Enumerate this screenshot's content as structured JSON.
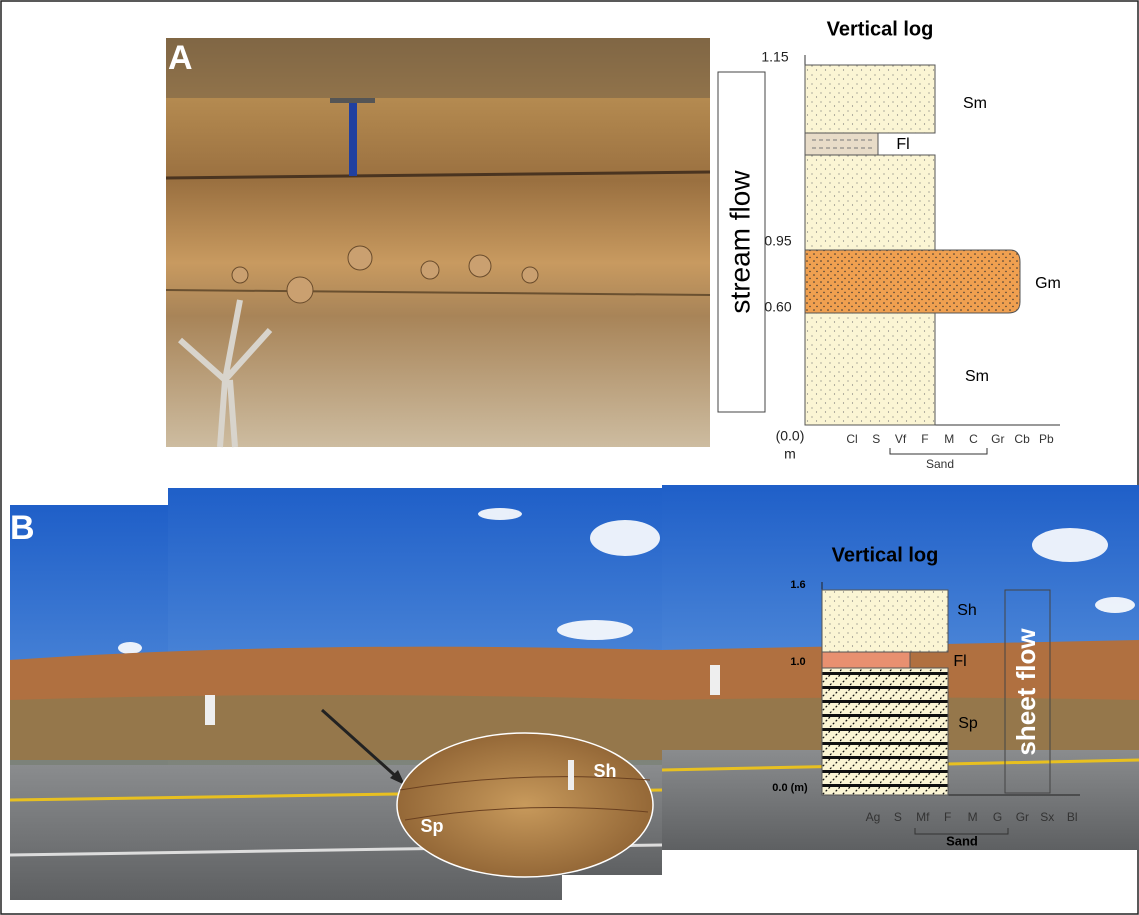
{
  "panel_a": {
    "label": "A",
    "log": {
      "title": "Vertical log",
      "depths": [
        "1.15",
        "0.95",
        "0.60",
        "(0.0)",
        "m"
      ],
      "facies": [
        "Sm",
        "Fl",
        "Gm",
        "Sm"
      ],
      "grain_sizes": [
        "Cl",
        "S",
        "Vf",
        "F",
        "M",
        "C",
        "Gr",
        "Cb",
        "Pb"
      ],
      "group_label": "Sand",
      "flow_label": "stream flow"
    }
  },
  "panel_b": {
    "label": "B",
    "log": {
      "title": "Vertical log",
      "depths": [
        "1.6",
        "1.0",
        "0.0 (m)"
      ],
      "facies": [
        "Sh",
        "Fl",
        "Sp"
      ],
      "grain_sizes": [
        "Ag",
        "S",
        "Mf",
        "F",
        "M",
        "G",
        "Gr",
        "Sx",
        "Bl"
      ],
      "group_label": "Sand",
      "flow_label": "sheet flow"
    },
    "inset_labels": [
      "Sh",
      "Sp"
    ]
  }
}
